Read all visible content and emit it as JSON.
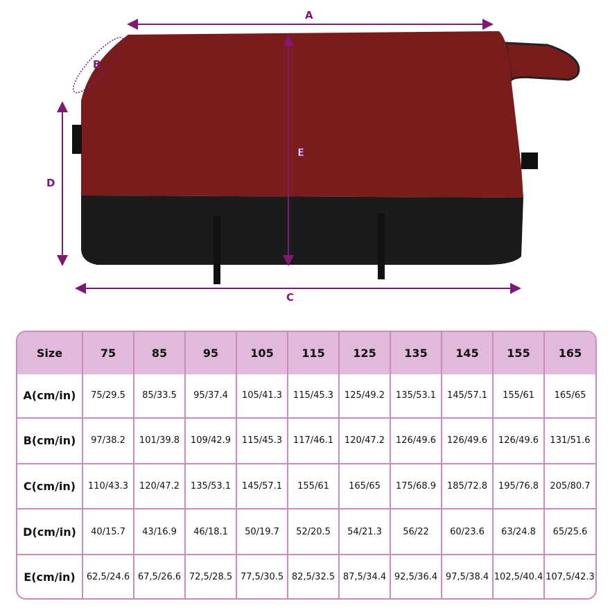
{
  "diagram": {
    "labels": {
      "a": "A",
      "b": "B",
      "c": "C",
      "d": "D",
      "e": "E"
    },
    "colors": {
      "accent": "#7e1a73",
      "blanket_top": "#7a1c1c",
      "blanket_bottom": "#1b1b1b"
    }
  },
  "size_table": {
    "header": [
      "Size",
      "75",
      "85",
      "95",
      "105",
      "115",
      "125",
      "135",
      "145",
      "155",
      "165"
    ],
    "rows": [
      [
        "A(cm/in)",
        "75/29.5",
        "85/33.5",
        "95/37.4",
        "105/41.3",
        "115/45.3",
        "125/49.2",
        "135/53.1",
        "145/57.1",
        "155/61",
        "165/65"
      ],
      [
        "B(cm/in)",
        "97/38.2",
        "101/39.8",
        "109/42.9",
        "115/45.3",
        "117/46.1",
        "120/47.2",
        "126/49.6",
        "126/49.6",
        "126/49.6",
        "131/51.6"
      ],
      [
        "C(cm/in)",
        "110/43.3",
        "120/47.2",
        "135/53.1",
        "145/57.1",
        "155/61",
        "165/65",
        "175/68.9",
        "185/72.8",
        "195/76.8",
        "205/80.7"
      ],
      [
        "D(cm/in)",
        "40/15.7",
        "43/16.9",
        "46/18.1",
        "50/19.7",
        "52/20.5",
        "54/21.3",
        "56/22",
        "60/23.6",
        "63/24.8",
        "65/25.6"
      ],
      [
        "E(cm/in)",
        "62,5/24.6",
        "67,5/26.6",
        "72,5/28.5",
        "77,5/30.5",
        "82,5/32.5",
        "87,5/34.4",
        "92,5/36.4",
        "97,5/38.4",
        "102,5/40.4",
        "107,5/42.3"
      ]
    ],
    "colors": {
      "header_bg": "#e3b9db",
      "border": "#c98bbd"
    }
  }
}
